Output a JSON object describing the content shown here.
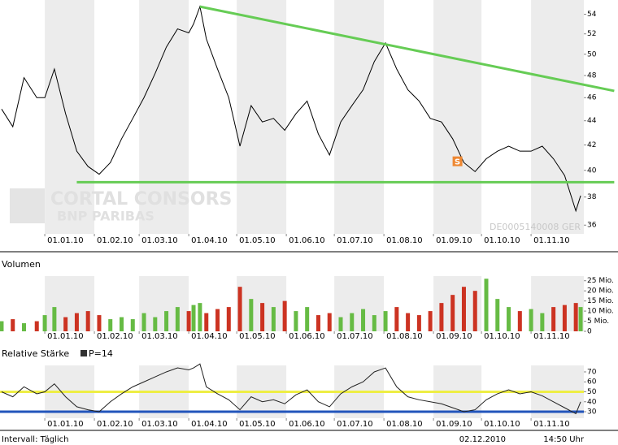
{
  "chart_data": [
    {
      "type": "line",
      "log": true,
      "color": "#000000",
      "x": [
        "05.12.09",
        "12.12.09",
        "19.12.09",
        "27.12.09",
        "01.01.10",
        "07.01.10",
        "14.01.10",
        "21.01.10",
        "28.01.10",
        "04.02.10",
        "11.02.10",
        "18.02.10",
        "25.02.10",
        "04.03.10",
        "11.03.10",
        "18.03.10",
        "25.03.10",
        "01.04.10",
        "04.04.10",
        "08.04.10",
        "12.04.10",
        "19.04.10",
        "26.04.10",
        "03.05.10",
        "10.05.10",
        "17.05.10",
        "24.05.10",
        "31.05.10",
        "07.06.10",
        "14.06.10",
        "21.06.10",
        "28.06.10",
        "05.07.10",
        "12.07.10",
        "19.07.10",
        "26.07.10",
        "02.08.10",
        "09.08.10",
        "16.08.10",
        "23.08.10",
        "30.08.10",
        "06.09.10",
        "13.09.10",
        "20.09.10",
        "27.09.10",
        "04.10.10",
        "11.10.10",
        "18.10.10",
        "25.10.10",
        "01.11.10",
        "08.11.10",
        "15.11.10",
        "22.11.10",
        "29.11.10",
        "02.12.10"
      ],
      "values": [
        45,
        43.5,
        47.8,
        46,
        46,
        48.6,
        44.6,
        41.5,
        40.3,
        39.7,
        40.6,
        42.5,
        44.2,
        46,
        48.2,
        50.7,
        52.5,
        52.1,
        53,
        54.8,
        51.5,
        48.6,
        46,
        41.9,
        45.3,
        43.9,
        44.2,
        43.2,
        44.6,
        45.7,
        42.9,
        41.2,
        43.9,
        45.3,
        46.7,
        49.3,
        51.1,
        48.6,
        46.7,
        45.7,
        44.2,
        43.9,
        42.5,
        40.6,
        39.9,
        40.9,
        41.5,
        41.9,
        41.5,
        41.5,
        41.9,
        40.9,
        39.6,
        37,
        38.1
      ],
      "xlim": [
        "04.12.09",
        "04.12.10"
      ],
      "xticks": [
        "01.01.10",
        "01.02.10",
        "01.03.10",
        "01.04.10",
        "01.05.10",
        "01.06.10",
        "01.07.10",
        "01.08.10",
        "01.09.10",
        "01.10.10",
        "01.11.10"
      ],
      "ylim": [
        35.4,
        55.5
      ],
      "yticks": [
        36,
        38,
        40,
        42,
        44,
        46,
        48,
        50,
        52,
        54
      ],
      "trend_lines": [
        {
          "x": [
            "08.04.10",
            "23.12.10"
          ],
          "values": [
            54.8,
            46.6
          ],
          "color": "#66cc55"
        },
        {
          "x": [
            "21.01.10",
            "23.12.10"
          ],
          "values": [
            39.1,
            39.1
          ],
          "color": "#66cc55"
        }
      ],
      "annotations": [
        {
          "text": "S",
          "x": "16.09.10",
          "value": 40.7,
          "color": "#ee8833"
        }
      ],
      "watermark": [
        "CORTAL CONSORS",
        "BNP PARIBAS"
      ],
      "code_label": "DE0005140008 GER"
    },
    {
      "type": "bar",
      "title": "Volumen",
      "x": [
        "05.12.09",
        "12.12.09",
        "19.12.09",
        "27.12.09",
        "01.01.10",
        "07.01.10",
        "14.01.10",
        "21.01.10",
        "28.01.10",
        "04.02.10",
        "11.02.10",
        "18.02.10",
        "25.02.10",
        "04.03.10",
        "11.03.10",
        "18.03.10",
        "25.03.10",
        "01.04.10",
        "04.04.10",
        "08.04.10",
        "12.04.10",
        "19.04.10",
        "26.04.10",
        "03.05.10",
        "10.05.10",
        "17.05.10",
        "24.05.10",
        "31.05.10",
        "07.06.10",
        "14.06.10",
        "21.06.10",
        "28.06.10",
        "05.07.10",
        "12.07.10",
        "19.07.10",
        "26.07.10",
        "02.08.10",
        "09.08.10",
        "16.08.10",
        "23.08.10",
        "30.08.10",
        "06.09.10",
        "13.09.10",
        "20.09.10",
        "27.09.10",
        "04.10.10",
        "11.10.10",
        "18.10.10",
        "25.10.10",
        "01.11.10",
        "08.11.10",
        "15.11.10",
        "22.11.10",
        "29.11.10",
        "02.12.10"
      ],
      "values": [
        5,
        6,
        4,
        5,
        8,
        12,
        7,
        9,
        10,
        8,
        6,
        7,
        6,
        9,
        7,
        10,
        12,
        10,
        13,
        14,
        9,
        11,
        12,
        22,
        16,
        14,
        12,
        15,
        10,
        12,
        8,
        9,
        7,
        9,
        11,
        8,
        10,
        12,
        9,
        8,
        10,
        14,
        18,
        22,
        20,
        26,
        16,
        12,
        10,
        11,
        9,
        12,
        13,
        14,
        12
      ],
      "colors": [
        "#66bb44",
        "#cc3322",
        "#66bb44",
        "#cc3322",
        "#66bb44",
        "#66bb44",
        "#cc3322",
        "#cc3322",
        "#cc3322",
        "#cc3322",
        "#66bb44",
        "#66bb44",
        "#66bb44",
        "#66bb44",
        "#66bb44",
        "#66bb44",
        "#66bb44",
        "#cc3322",
        "#66bb44",
        "#66bb44",
        "#cc3322",
        "#cc3322",
        "#cc3322",
        "#cc3322",
        "#66bb44",
        "#cc3322",
        "#66bb44",
        "#cc3322",
        "#66bb44",
        "#66bb44",
        "#cc3322",
        "#cc3322",
        "#66bb44",
        "#66bb44",
        "#66bb44",
        "#66bb44",
        "#66bb44",
        "#cc3322",
        "#cc3322",
        "#cc3322",
        "#cc3322",
        "#cc3322",
        "#cc3322",
        "#cc3322",
        "#cc3322",
        "#66bb44",
        "#66bb44",
        "#66bb44",
        "#cc3322",
        "#66bb44",
        "#66bb44",
        "#cc3322",
        "#cc3322",
        "#cc3322",
        "#66bb44"
      ],
      "xlim": [
        "04.12.09",
        "04.12.10"
      ],
      "xticks": [
        "01.01.10",
        "01.02.10",
        "01.03.10",
        "01.04.10",
        "01.05.10",
        "01.06.10",
        "01.07.10",
        "01.08.10",
        "01.09.10",
        "01.10.10",
        "01.11.10"
      ],
      "ylim": [
        0,
        27.3
      ],
      "yticks": [
        0,
        {
          "value": 5,
          "label": "5 Mio."
        },
        {
          "value": 10,
          "label": "10 Mio."
        },
        {
          "value": 15,
          "label": "15 Mio."
        },
        {
          "value": 20,
          "label": "20 Mio."
        },
        {
          "value": 25,
          "label": "25 Mio."
        }
      ]
    },
    {
      "type": "line",
      "title": "Relative Stärke",
      "legend": "P=14",
      "legend_color": "#333333",
      "color": "#222222",
      "x": [
        "05.12.09",
        "12.12.09",
        "19.12.09",
        "27.12.09",
        "01.01.10",
        "07.01.10",
        "14.01.10",
        "21.01.10",
        "28.01.10",
        "04.02.10",
        "11.02.10",
        "18.02.10",
        "25.02.10",
        "04.03.10",
        "11.03.10",
        "18.03.10",
        "25.03.10",
        "01.04.10",
        "04.04.10",
        "08.04.10",
        "12.04.10",
        "19.04.10",
        "26.04.10",
        "03.05.10",
        "10.05.10",
        "17.05.10",
        "24.05.10",
        "31.05.10",
        "07.06.10",
        "14.06.10",
        "21.06.10",
        "28.06.10",
        "05.07.10",
        "12.07.10",
        "19.07.10",
        "26.07.10",
        "02.08.10",
        "09.08.10",
        "16.08.10",
        "23.08.10",
        "30.08.10",
        "06.09.10",
        "13.09.10",
        "20.09.10",
        "27.09.10",
        "04.10.10",
        "11.10.10",
        "18.10.10",
        "25.10.10",
        "01.11.10",
        "08.11.10",
        "15.11.10",
        "22.11.10",
        "29.11.10",
        "02.12.10"
      ],
      "values": [
        50,
        45,
        55,
        48,
        50,
        58,
        45,
        35,
        32,
        30,
        40,
        48,
        55,
        60,
        65,
        70,
        74,
        72,
        74,
        78,
        55,
        48,
        42,
        32,
        45,
        40,
        42,
        38,
        47,
        52,
        40,
        35,
        48,
        55,
        60,
        70,
        74,
        55,
        45,
        42,
        40,
        38,
        34,
        30,
        32,
        42,
        48,
        52,
        48,
        50,
        46,
        40,
        34,
        28,
        40
      ],
      "xlim": [
        "04.12.09",
        "04.12.10"
      ],
      "xticks": [
        "01.01.10",
        "01.02.10",
        "01.03.10",
        "01.04.10",
        "01.05.10",
        "01.06.10",
        "01.07.10",
        "01.08.10",
        "01.09.10",
        "01.10.10",
        "01.11.10"
      ],
      "ylim": [
        23.5,
        76.5
      ],
      "yticks": [
        30,
        40,
        50,
        60,
        70
      ],
      "reference_lines": [
        {
          "value": 50,
          "color": "#eeee44"
        },
        {
          "value": 30,
          "color": "#2255bb"
        }
      ]
    }
  ],
  "footer": {
    "interval": "Intervall: Täglich",
    "date": "02.12.2010",
    "time": "14:50 Uhr"
  }
}
